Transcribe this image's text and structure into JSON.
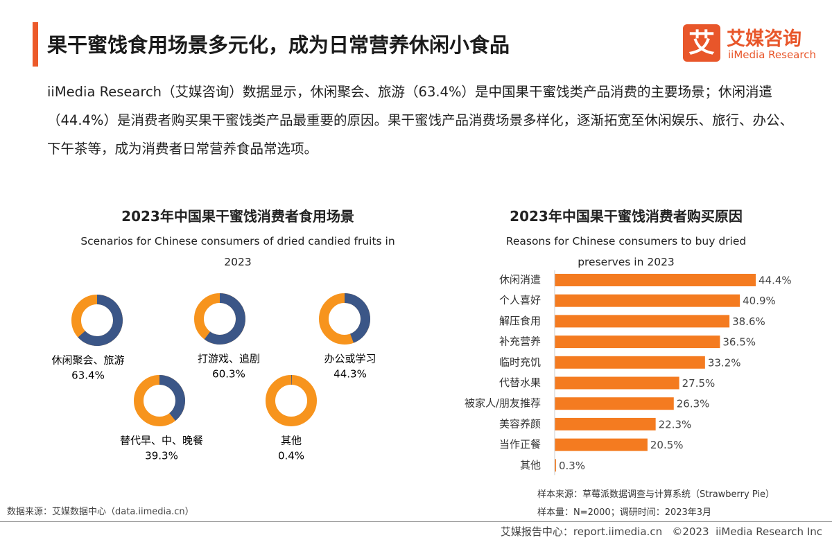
{
  "header": {
    "title": "果干蜜饯食用场景多元化，成为日常营养休闲小食品",
    "logo_icon": "艾",
    "logo_name": "艾媒咨询",
    "logo_en": "iiMedia Research"
  },
  "paragraph": "iiMedia Research（艾媒咨询）数据显示，休闲聚会、旅游（63.4%）是中国果干蜜饯类产品消费的主要场景；休闲消遣（44.4%）是消费者购买果干蜜饯类产品最重要的原因。果干蜜饯产品消费场景多样化，逐渐拓宽至休闲娱乐、旅行、办公、下午茶等，成为消费者日常营养食品常选项。",
  "chart_data": [
    {
      "type": "donut",
      "title": "2023年中国果干蜜饯消费者食用场景",
      "subtitle": "Scenarios for Chinese consumers of dried candied fruits in 2023",
      "categories": [
        "休闲聚会、旅游",
        "打游戏、追剧",
        "办公或学习",
        "替代早、中、晚餐",
        "其他"
      ],
      "values": [
        63.4,
        60.3,
        44.3,
        39.3,
        0.4
      ],
      "value_labels": [
        "63.4%",
        "60.3%",
        "44.3%",
        "39.3%",
        "0.4%"
      ],
      "color": "#3b5687",
      "rest_color": "#f7941d"
    },
    {
      "type": "hbar",
      "title": "2023年中国果干蜜饯消费者购买原因",
      "subtitle": "Reasons for Chinese consumers to buy dried preserves in 2023",
      "categories": [
        "休闲消遣",
        "个人喜好",
        "解压食用",
        "补充营养",
        "临时充饥",
        "代替水果",
        "被家人/朋友推荐",
        "美容养颜",
        "当作正餐",
        "其他"
      ],
      "values": [
        44.4,
        40.9,
        38.6,
        36.5,
        33.2,
        27.5,
        26.3,
        22.3,
        20.5,
        0.3
      ],
      "value_labels": [
        "44.4%",
        "40.9%",
        "38.6%",
        "36.5%",
        "33.2%",
        "27.5%",
        "26.3%",
        "22.3%",
        "20.5%",
        "0.3%"
      ],
      "color": "#f47b20"
    }
  ],
  "footer": {
    "source": "数据来源：艾媒数据中心（data.iimedia.cn）",
    "sample_source": "样本来源：草莓派数据调查与计算系统（Strawberry Pie）",
    "sample_size": "样本量：N=2000；调研时间：2023年3月",
    "report": "艾媒报告中心：report.iimedia.cn   ©2023  iiMedia Research Inc"
  }
}
